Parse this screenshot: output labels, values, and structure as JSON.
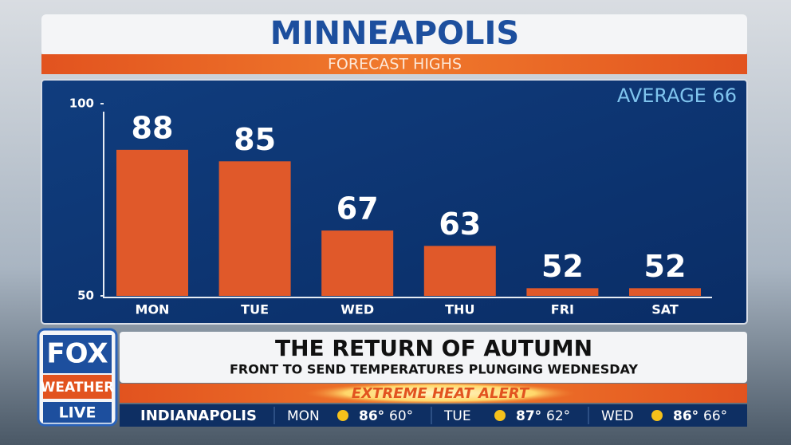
{
  "chart_data": {
    "type": "bar",
    "title": "MINNEAPOLIS",
    "subtitle": "FORECAST HIGHS",
    "annotation": "AVERAGE 66",
    "categories": [
      "MON",
      "TUE",
      "WED",
      "THU",
      "FRI",
      "SAT"
    ],
    "values": [
      88,
      85,
      67,
      63,
      52,
      52
    ],
    "color": "#e0592a",
    "ylim": [
      50,
      100
    ],
    "yticks": [
      50,
      100
    ],
    "grid": false
  },
  "lower_third": {
    "headline": "THE RETURN OF AUTUMN",
    "subhead": "FRONT TO SEND TEMPERATURES PLUNGING WEDNESDAY",
    "alert": "EXTREME HEAT ALERT"
  },
  "logo": {
    "top": "FOX",
    "middle": "WEATHER",
    "bottom": "LIVE"
  },
  "ticker": {
    "city": "INDIANAPOLIS",
    "days": [
      {
        "day": "MON",
        "high": "86°",
        "low": "60°"
      },
      {
        "day": "TUE",
        "high": "87°",
        "low": "62°"
      },
      {
        "day": "WED",
        "high": "86°",
        "low": "66°"
      }
    ]
  }
}
